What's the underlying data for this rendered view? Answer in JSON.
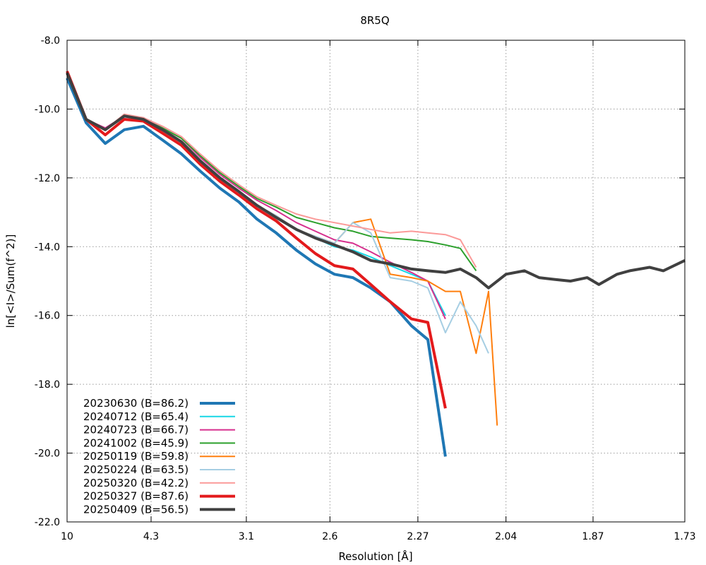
{
  "chart_data": {
    "type": "line",
    "title": "8R5Q",
    "xlabel": "Resolution [Å]",
    "ylabel": "ln[<I>/Sum(f^2)]",
    "x_scale": "inverse-square",
    "xlim": [
      10,
      1.73
    ],
    "ylim": [
      -22.0,
      -8.0
    ],
    "x_ticks": [
      10,
      4.3,
      3.1,
      2.6,
      2.27,
      2.04,
      1.87,
      1.73
    ],
    "x_tick_labels": [
      "10",
      "4.3",
      "3.1",
      "2.6",
      "2.27",
      "2.04",
      "1.87",
      "1.73"
    ],
    "y_ticks": [
      -22.0,
      -20.0,
      -18.0,
      -16.0,
      -14.0,
      -12.0,
      -10.0,
      -8.0
    ],
    "y_tick_labels": [
      "-22.0",
      "-20.0",
      "-18.0",
      "-16.0",
      "-14.0",
      "-12.0",
      "-10.0",
      "-8.0"
    ],
    "grid": true,
    "legend_position": "bottom-left",
    "series": [
      {
        "name": "20230630 (B=86.2)",
        "color": "#1f77b4",
        "width": 4,
        "x": [
          10,
          7.07,
          5.77,
          5.0,
          4.47,
          4.08,
          3.78,
          3.54,
          3.33,
          3.16,
          3.02,
          2.89,
          2.77,
          2.67,
          2.58,
          2.5,
          2.43,
          2.36,
          2.29,
          2.24,
          2.19
        ],
        "y": [
          -9.1,
          -10.4,
          -11.0,
          -10.6,
          -10.5,
          -10.9,
          -11.3,
          -11.8,
          -12.3,
          -12.7,
          -13.2,
          -13.6,
          -14.1,
          -14.5,
          -14.8,
          -14.9,
          -15.2,
          -15.6,
          -16.3,
          -16.7,
          -20.1
        ]
      },
      {
        "name": "20240712 (B=65.4)",
        "color": "#17d7e6",
        "width": 2,
        "x": [
          10,
          7.07,
          5.77,
          5.0,
          4.47,
          4.08,
          3.78,
          3.54,
          3.33,
          3.16,
          3.02,
          2.89,
          2.77,
          2.67,
          2.58,
          2.5,
          2.43,
          2.36,
          2.29,
          2.24,
          2.19
        ],
        "y": [
          -8.95,
          -10.3,
          -10.6,
          -10.25,
          -10.3,
          -10.6,
          -10.95,
          -11.5,
          -12.0,
          -12.4,
          -12.8,
          -13.1,
          -13.5,
          -13.75,
          -14.0,
          -14.1,
          -14.3,
          -14.55,
          -14.8,
          -15.0,
          -16.0
        ]
      },
      {
        "name": "20240723 (B=66.7)",
        "color": "#d62f8e",
        "width": 2,
        "x": [
          10,
          7.07,
          5.77,
          5.0,
          4.47,
          4.08,
          3.78,
          3.54,
          3.33,
          3.16,
          3.02,
          2.89,
          2.77,
          2.67,
          2.58,
          2.5,
          2.43,
          2.36,
          2.29,
          2.24,
          2.19
        ],
        "y": [
          -8.95,
          -10.3,
          -10.55,
          -10.2,
          -10.25,
          -10.55,
          -10.85,
          -11.4,
          -11.9,
          -12.3,
          -12.65,
          -12.95,
          -13.3,
          -13.55,
          -13.8,
          -13.9,
          -14.15,
          -14.45,
          -14.75,
          -15.0,
          -16.1
        ]
      },
      {
        "name": "20241002 (B=45.9)",
        "color": "#2ca02c",
        "width": 2,
        "x": [
          10,
          7.07,
          5.77,
          5.0,
          4.47,
          4.08,
          3.78,
          3.54,
          3.33,
          3.16,
          3.02,
          2.89,
          2.77,
          2.67,
          2.58,
          2.5,
          2.43,
          2.36,
          2.29,
          2.24,
          2.19,
          2.15,
          2.11
        ],
        "y": [
          -8.95,
          -10.3,
          -10.6,
          -10.2,
          -10.3,
          -10.55,
          -10.85,
          -11.35,
          -11.85,
          -12.25,
          -12.6,
          -12.85,
          -13.15,
          -13.3,
          -13.45,
          -13.55,
          -13.7,
          -13.75,
          -13.8,
          -13.85,
          -13.95,
          -14.05,
          -14.7
        ]
      },
      {
        "name": "20250119 (B=59.8)",
        "color": "#ff7f0e",
        "width": 2,
        "x": [
          10,
          7.07,
          5.77,
          5.0,
          4.47,
          4.08,
          3.78,
          3.54,
          3.33,
          3.16,
          3.02,
          2.89,
          2.77,
          2.67,
          2.58,
          2.5,
          2.43,
          2.36,
          2.29,
          2.24,
          2.19,
          2.15,
          2.11,
          2.08,
          2.06
        ],
        "y": [
          -8.95,
          -10.3,
          -10.6,
          -10.25,
          -10.3,
          -10.6,
          -10.95,
          -11.5,
          -12.0,
          -12.4,
          -12.8,
          -13.1,
          -13.5,
          -13.7,
          -13.9,
          -13.3,
          -13.2,
          -14.8,
          -14.9,
          -15.0,
          -15.3,
          -15.3,
          -17.1,
          -15.3,
          -19.2
        ]
      },
      {
        "name": "20250224 (B=63.5)",
        "color": "#a6cee3",
        "width": 2,
        "x": [
          10,
          7.07,
          5.77,
          5.0,
          4.47,
          4.08,
          3.78,
          3.54,
          3.33,
          3.16,
          3.02,
          2.89,
          2.77,
          2.67,
          2.58,
          2.5,
          2.43,
          2.36,
          2.29,
          2.24,
          2.19,
          2.15,
          2.11,
          2.08
        ],
        "y": [
          -8.95,
          -10.3,
          -10.6,
          -10.25,
          -10.3,
          -10.6,
          -10.95,
          -11.5,
          -12.0,
          -12.4,
          -12.8,
          -13.1,
          -13.5,
          -13.7,
          -13.9,
          -13.3,
          -13.6,
          -14.9,
          -15.0,
          -15.2,
          -16.5,
          -15.6,
          -16.3,
          -17.1
        ]
      },
      {
        "name": "20250320 (B=42.2)",
        "color": "#fb9a99",
        "width": 2,
        "x": [
          10,
          7.07,
          5.77,
          5.0,
          4.47,
          4.08,
          3.78,
          3.54,
          3.33,
          3.16,
          3.02,
          2.89,
          2.77,
          2.67,
          2.58,
          2.5,
          2.43,
          2.36,
          2.29,
          2.24,
          2.19,
          2.15,
          2.11
        ],
        "y": [
          -8.95,
          -10.3,
          -10.6,
          -10.15,
          -10.25,
          -10.5,
          -10.8,
          -11.3,
          -11.8,
          -12.2,
          -12.55,
          -12.8,
          -13.05,
          -13.2,
          -13.3,
          -13.4,
          -13.5,
          -13.6,
          -13.55,
          -13.6,
          -13.65,
          -13.8,
          -14.6
        ]
      },
      {
        "name": "20250327 (B=87.6)",
        "color": "#e31a1c",
        "width": 4,
        "x": [
          10,
          7.07,
          5.77,
          5.0,
          4.47,
          4.08,
          3.78,
          3.54,
          3.33,
          3.16,
          3.02,
          2.89,
          2.77,
          2.67,
          2.58,
          2.5,
          2.43,
          2.36,
          2.29,
          2.24,
          2.19
        ],
        "y": [
          -8.9,
          -10.3,
          -10.75,
          -10.3,
          -10.35,
          -10.7,
          -11.05,
          -11.6,
          -12.1,
          -12.5,
          -12.9,
          -13.25,
          -13.75,
          -14.2,
          -14.55,
          -14.65,
          -15.1,
          -15.6,
          -16.1,
          -16.2,
          -18.7
        ]
      },
      {
        "name": "20250409 (B=56.5)",
        "color": "#404040",
        "width": 4,
        "x": [
          10,
          7.07,
          5.77,
          5.0,
          4.47,
          4.08,
          3.78,
          3.54,
          3.33,
          3.16,
          3.02,
          2.89,
          2.77,
          2.67,
          2.58,
          2.5,
          2.43,
          2.36,
          2.29,
          2.24,
          2.19,
          2.15,
          2.11,
          2.08,
          2.04,
          2.0,
          1.97,
          1.94,
          1.91,
          1.88,
          1.86,
          1.83,
          1.81,
          1.78,
          1.76,
          1.73
        ],
        "y": [
          -8.95,
          -10.3,
          -10.6,
          -10.2,
          -10.3,
          -10.6,
          -10.95,
          -11.5,
          -12.0,
          -12.4,
          -12.8,
          -13.15,
          -13.5,
          -13.75,
          -13.95,
          -14.15,
          -14.4,
          -14.5,
          -14.65,
          -14.7,
          -14.75,
          -14.65,
          -14.9,
          -15.2,
          -14.8,
          -14.7,
          -14.9,
          -14.95,
          -15.0,
          -14.9,
          -15.1,
          -14.8,
          -14.7,
          -14.6,
          -14.7,
          -14.4
        ]
      }
    ]
  }
}
